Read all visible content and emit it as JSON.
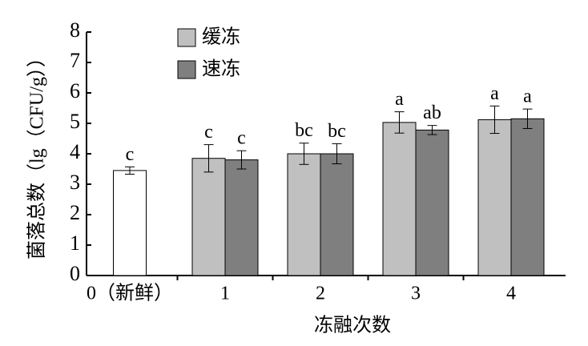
{
  "chart_data": {
    "type": "bar",
    "x_label": "冻融次数",
    "y_label": "菌落总数（lg（CFU/g））",
    "categories": [
      "0（新鲜）",
      "1",
      "2",
      "3",
      "4"
    ],
    "fresh": {
      "value": 3.45,
      "error": 0.12,
      "label": "c",
      "color": "#ffffff"
    },
    "series": [
      {
        "name": "缓冻",
        "color": "#c0c0c0",
        "values": [
          null,
          3.85,
          4.0,
          5.03,
          5.12
        ],
        "errors": [
          null,
          0.45,
          0.35,
          0.35,
          0.45
        ],
        "labels": [
          null,
          "c",
          "bc",
          "a",
          "a"
        ]
      },
      {
        "name": "速冻",
        "color": "#7f7f7f",
        "values": [
          null,
          3.8,
          4.0,
          4.78,
          5.15
        ],
        "errors": [
          null,
          0.3,
          0.33,
          0.15,
          0.32
        ],
        "labels": [
          null,
          "c",
          "bc",
          "ab",
          "a"
        ]
      }
    ],
    "ylim": [
      0,
      8
    ],
    "yticks": [
      0,
      1,
      2,
      3,
      4,
      5,
      6,
      7,
      8
    ]
  }
}
